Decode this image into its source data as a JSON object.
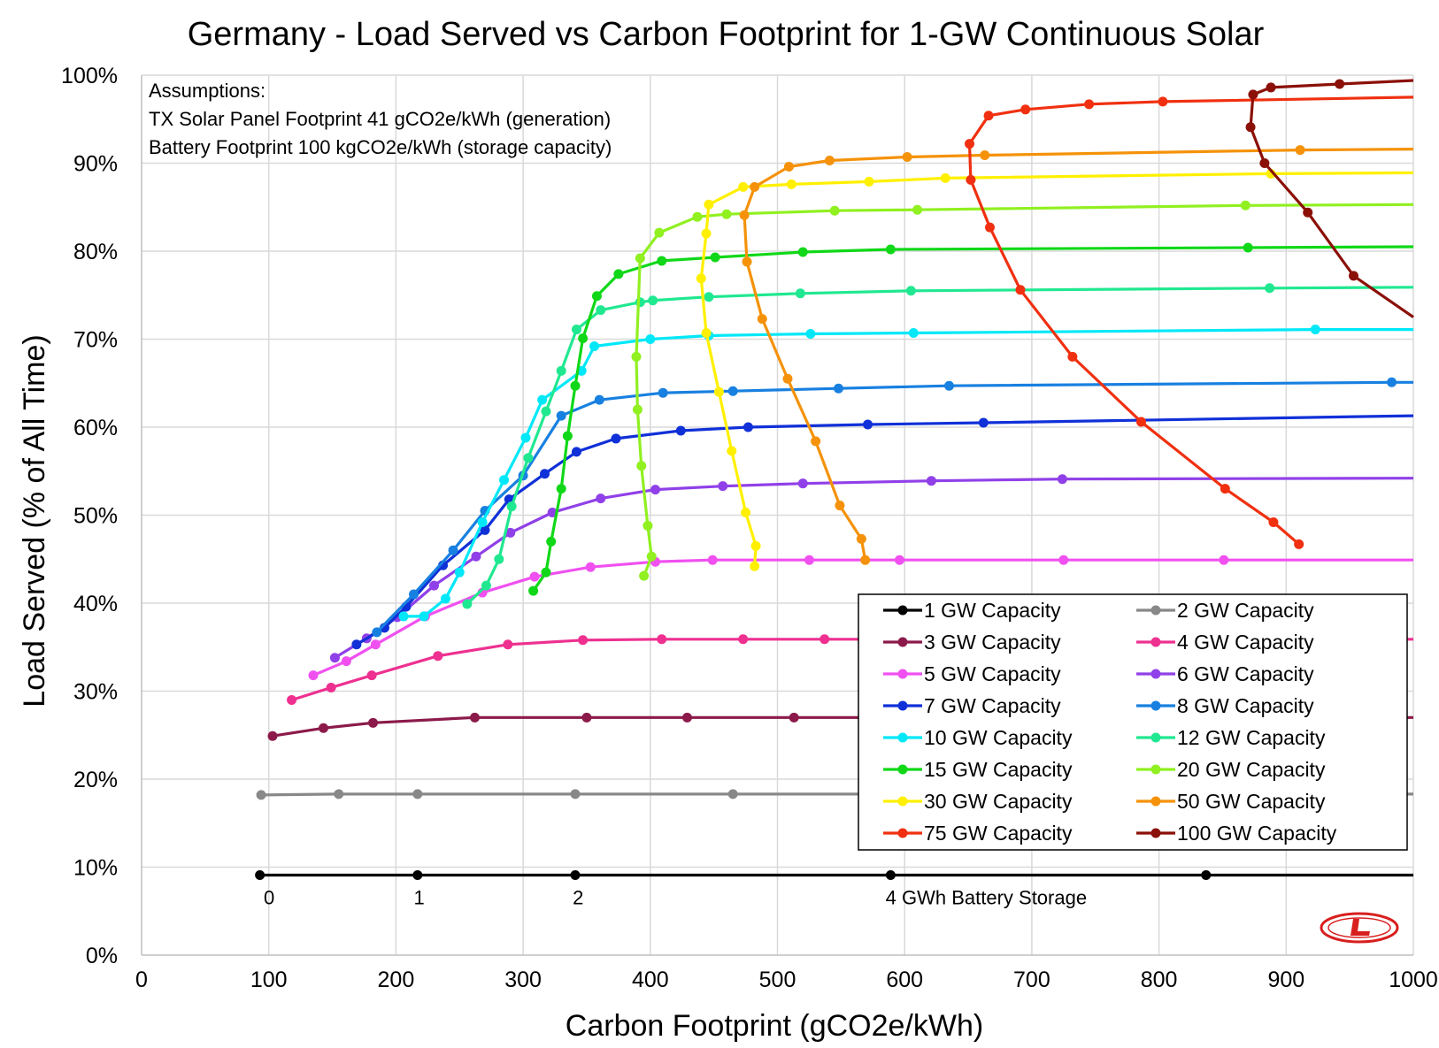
{
  "chart_data": {
    "type": "line",
    "title": "Germany - Load Served vs Carbon Footprint for 1-GW Continuous Solar",
    "xlabel": "Carbon Footprint (gCO2e/kWh)",
    "ylabel": "Load Served (% of All Time)",
    "xlim": [
      0,
      1000
    ],
    "ylim": [
      0,
      100
    ],
    "x_ticks": [
      0,
      100,
      200,
      300,
      400,
      500,
      600,
      700,
      800,
      900,
      1000
    ],
    "y_ticks": [
      0,
      10,
      20,
      30,
      40,
      50,
      60,
      70,
      80,
      90,
      100
    ],
    "x_tick_labels": [
      "0",
      "100",
      "200",
      "300",
      "400",
      "500",
      "600",
      "700",
      "800",
      "900",
      "1000"
    ],
    "y_tick_labels": [
      "0%",
      "10%",
      "20%",
      "30%",
      "40%",
      "50%",
      "60%",
      "70%",
      "80%",
      "90%",
      "100%"
    ],
    "grid": true,
    "legend_position": "bottom-right",
    "assumptions": [
      "Assumptions:",
      "TX Solar Panel Footprint 41 gCO2e/kWh (generation)",
      "Battery Footprint 100 kgCO2e/kWh (storage capacity)"
    ],
    "annotations": [
      {
        "text": "0",
        "x": 96,
        "y": 5.8
      },
      {
        "text": "1",
        "x": 214,
        "y": 5.8
      },
      {
        "text": "2",
        "x": 339,
        "y": 5.8
      },
      {
        "text": "4 GWh Battery Storage",
        "x": 585,
        "y": 5.8
      }
    ],
    "series": [
      {
        "name": "1 GW Capacity",
        "color": "#000000",
        "points": [
          [
            93,
            9.1
          ],
          [
            217,
            9.1
          ],
          [
            341,
            9.1
          ],
          [
            589,
            9.1
          ],
          [
            837,
            9.1
          ],
          [
            1000,
            9.1
          ]
        ]
      },
      {
        "name": "2 GW Capacity",
        "color": "#888888",
        "points": [
          [
            94,
            18.2
          ],
          [
            155,
            18.3
          ],
          [
            217,
            18.3
          ],
          [
            341,
            18.3
          ],
          [
            465,
            18.3
          ],
          [
            1000,
            18.3
          ]
        ]
      },
      {
        "name": "3 GW Capacity",
        "color": "#8B1A4A",
        "points": [
          [
            103,
            24.9
          ],
          [
            143,
            25.8
          ],
          [
            182,
            26.4
          ],
          [
            262,
            27.0
          ],
          [
            350,
            27.0
          ],
          [
            429,
            27.0
          ],
          [
            513,
            27.0
          ],
          [
            1000,
            27.0
          ]
        ]
      },
      {
        "name": "4 GW Capacity",
        "color": "#EE3090",
        "points": [
          [
            118,
            29.0
          ],
          [
            149,
            30.4
          ],
          [
            181,
            31.8
          ],
          [
            233,
            34.0
          ],
          [
            288,
            35.3
          ],
          [
            347,
            35.8
          ],
          [
            409,
            35.9
          ],
          [
            473,
            35.9
          ],
          [
            537,
            35.9
          ],
          [
            1000,
            35.9
          ]
        ]
      },
      {
        "name": "5 GW Capacity",
        "color": "#F050F0",
        "points": [
          [
            135,
            31.8
          ],
          [
            161,
            33.4
          ],
          [
            184,
            35.3
          ],
          [
            223,
            38.5
          ],
          [
            268,
            41.2
          ],
          [
            309,
            43.0
          ],
          [
            353,
            44.1
          ],
          [
            404,
            44.7
          ],
          [
            449,
            44.9
          ],
          [
            525,
            44.9
          ],
          [
            596,
            44.9
          ],
          [
            725,
            44.9
          ],
          [
            851,
            44.9
          ],
          [
            1000,
            44.9
          ]
        ]
      },
      {
        "name": "6 GW Capacity",
        "color": "#9040E8",
        "points": [
          [
            152,
            33.8
          ],
          [
            177,
            36.0
          ],
          [
            201,
            38.4
          ],
          [
            230,
            42.0
          ],
          [
            263,
            45.3
          ],
          [
            290,
            48.0
          ],
          [
            323,
            50.3
          ],
          [
            361,
            51.9
          ],
          [
            404,
            52.9
          ],
          [
            457,
            53.3
          ],
          [
            520,
            53.6
          ],
          [
            621,
            53.9
          ],
          [
            724,
            54.1
          ],
          [
            1000,
            54.2
          ]
        ]
      },
      {
        "name": "7 GW Capacity",
        "color": "#1030D8",
        "points": [
          [
            169,
            35.3
          ],
          [
            191,
            37.2
          ],
          [
            208,
            39.6
          ],
          [
            237,
            44.3
          ],
          [
            270,
            48.3
          ],
          [
            289,
            51.8
          ],
          [
            317,
            54.7
          ],
          [
            342,
            57.2
          ],
          [
            373,
            58.7
          ],
          [
            424,
            59.6
          ],
          [
            477,
            60.0
          ],
          [
            571,
            60.3
          ],
          [
            662,
            60.5
          ],
          [
            1000,
            61.3
          ]
        ]
      },
      {
        "name": "8 GW Capacity",
        "color": "#1880E0",
        "points": [
          [
            185,
            36.7
          ],
          [
            214,
            41.0
          ],
          [
            245,
            46.0
          ],
          [
            270,
            50.5
          ],
          [
            300,
            54.5
          ],
          [
            330,
            61.3
          ],
          [
            360,
            63.1
          ],
          [
            410,
            63.9
          ],
          [
            465,
            64.1
          ],
          [
            548,
            64.4
          ],
          [
            635,
            64.7
          ],
          [
            983,
            65.1
          ],
          [
            1000,
            65.1
          ]
        ]
      },
      {
        "name": "10 GW Capacity",
        "color": "#00E8F8",
        "points": [
          [
            206,
            38.5
          ],
          [
            222,
            38.5
          ],
          [
            239,
            40.5
          ],
          [
            250,
            43.5
          ],
          [
            268,
            49.2
          ],
          [
            285,
            54.0
          ],
          [
            302,
            58.8
          ],
          [
            315,
            63.1
          ],
          [
            346,
            66.4
          ],
          [
            356,
            69.2
          ],
          [
            400,
            70.0
          ],
          [
            446,
            70.4
          ],
          [
            526,
            70.6
          ],
          [
            607,
            70.7
          ],
          [
            923,
            71.1
          ],
          [
            1000,
            71.1
          ]
        ]
      },
      {
        "name": "12 GW Capacity",
        "color": "#20E890",
        "points": [
          [
            256,
            39.9
          ],
          [
            271,
            42.0
          ],
          [
            281,
            45.0
          ],
          [
            291,
            51.0
          ],
          [
            304,
            56.5
          ],
          [
            318,
            61.8
          ],
          [
            330,
            66.4
          ],
          [
            342,
            71.1
          ],
          [
            361,
            73.3
          ],
          [
            392,
            74.2
          ],
          [
            402,
            74.4
          ],
          [
            446,
            74.8
          ],
          [
            518,
            75.2
          ],
          [
            605,
            75.5
          ],
          [
            887,
            75.8
          ],
          [
            1000,
            75.9
          ]
        ]
      },
      {
        "name": "15 GW Capacity",
        "color": "#10D818",
        "points": [
          [
            308,
            41.4
          ],
          [
            318,
            43.5
          ],
          [
            322,
            47.0
          ],
          [
            330,
            53.0
          ],
          [
            335,
            59.0
          ],
          [
            341,
            64.7
          ],
          [
            347,
            70.1
          ],
          [
            358,
            74.9
          ],
          [
            375,
            77.4
          ],
          [
            409,
            78.9
          ],
          [
            451,
            79.3
          ],
          [
            520,
            79.9
          ],
          [
            589,
            80.2
          ],
          [
            870,
            80.4
          ],
          [
            1000,
            80.5
          ]
        ]
      },
      {
        "name": "20 GW Capacity",
        "color": "#90F020",
        "points": [
          [
            395,
            43.1
          ],
          [
            401,
            45.3
          ],
          [
            398,
            48.8
          ],
          [
            393,
            55.6
          ],
          [
            390,
            62.0
          ],
          [
            389,
            68.0
          ],
          [
            392,
            79.2
          ],
          [
            407,
            82.1
          ],
          [
            437,
            83.9
          ],
          [
            460,
            84.2
          ],
          [
            545,
            84.6
          ],
          [
            610,
            84.7
          ],
          [
            868,
            85.2
          ],
          [
            1000,
            85.3
          ]
        ]
      },
      {
        "name": "30 GW Capacity",
        "color": "#FFF000",
        "points": [
          [
            482,
            44.2
          ],
          [
            483,
            46.5
          ],
          [
            475,
            50.3
          ],
          [
            464,
            57.3
          ],
          [
            454,
            64.0
          ],
          [
            444,
            70.7
          ],
          [
            440,
            76.9
          ],
          [
            444,
            82.0
          ],
          [
            446,
            85.3
          ],
          [
            473,
            87.3
          ],
          [
            511,
            87.6
          ],
          [
            572,
            87.9
          ],
          [
            632,
            88.3
          ],
          [
            888,
            88.8
          ],
          [
            1000,
            88.9
          ]
        ]
      },
      {
        "name": "50 GW Capacity",
        "color": "#F5920A",
        "points": [
          [
            569,
            44.9
          ],
          [
            566,
            47.3
          ],
          [
            549,
            51.1
          ],
          [
            530,
            58.4
          ],
          [
            508,
            65.5
          ],
          [
            488,
            72.3
          ],
          [
            476,
            78.8
          ],
          [
            474,
            84.1
          ],
          [
            482,
            87.3
          ],
          [
            509,
            89.6
          ],
          [
            541,
            90.3
          ],
          [
            602,
            90.7
          ],
          [
            663,
            90.9
          ],
          [
            911,
            91.5
          ],
          [
            1000,
            91.6
          ]
        ]
      },
      {
        "name": "75 GW Capacity",
        "color": "#F03010",
        "points": [
          [
            910,
            46.7
          ],
          [
            890,
            49.2
          ],
          [
            852,
            53.0
          ],
          [
            786,
            60.6
          ],
          [
            732,
            68.0
          ],
          [
            691,
            75.6
          ],
          [
            667,
            82.7
          ],
          [
            652,
            88.1
          ],
          [
            651,
            92.2
          ],
          [
            666,
            95.4
          ],
          [
            695,
            96.1
          ],
          [
            745,
            96.7
          ],
          [
            803,
            97.0
          ],
          [
            1000,
            97.5
          ]
        ]
      },
      {
        "name": "100 GW Capacity",
        "color": "#8B1008",
        "points": [
          [
            1000,
            72.5
          ],
          [
            953,
            77.2
          ],
          [
            917,
            84.4
          ],
          [
            883,
            90.0
          ],
          [
            872,
            94.1
          ],
          [
            874,
            97.8
          ],
          [
            888,
            98.6
          ],
          [
            942,
            99.0
          ],
          [
            1000,
            99.4
          ]
        ]
      }
    ]
  }
}
